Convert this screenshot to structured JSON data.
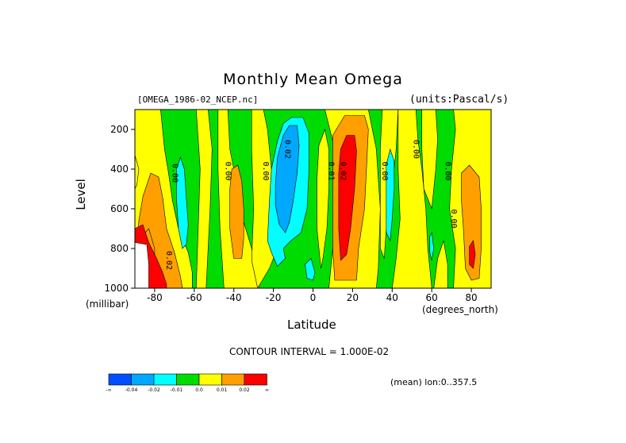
{
  "page": {
    "title": "Monthly Mean Omega",
    "file_label": "[OMEGA_1986-02_NCEP.nc]",
    "units_label": "(units:Pascal/s)",
    "contour_interval": "CONTOUR INTERVAL = 1.000E-02",
    "mean_note": "(mean) lon:0..357.5"
  },
  "chart_data": {
    "type": "heatmap",
    "title": "Monthly Mean Omega",
    "xlabel": "Latitude",
    "xunit": "(degrees_north)",
    "ylabel": "Level",
    "yunit": "(millibar)",
    "xlim": [
      -90,
      90
    ],
    "ylim": [
      1000,
      100
    ],
    "x_ticks": [
      -80,
      -60,
      -40,
      -20,
      0,
      20,
      40,
      60,
      80
    ],
    "x_tick_labels": [
      "-80",
      "-60",
      "-40",
      "-20",
      "0",
      "20",
      "40",
      "60",
      "80"
    ],
    "y_ticks": [
      200,
      400,
      600,
      800,
      1000
    ],
    "y_tick_labels": [
      "200",
      "400",
      "600",
      "800",
      "1000"
    ],
    "contour_labels": [
      {
        "lat": -71,
        "level": 420,
        "text": "0.00"
      },
      {
        "lat": -44,
        "level": 410,
        "text": "0.00"
      },
      {
        "lat": -25,
        "level": 410,
        "text": "0.00"
      },
      {
        "lat": -14,
        "level": 300,
        "text": "0.02"
      },
      {
        "lat": 8,
        "level": 410,
        "text": "0.01"
      },
      {
        "lat": 14,
        "level": 410,
        "text": "0.02"
      },
      {
        "lat": 35,
        "level": 410,
        "text": "0.00"
      },
      {
        "lat": 51,
        "level": 300,
        "text": "0.00"
      },
      {
        "lat": 67,
        "level": 410,
        "text": "0.00"
      },
      {
        "lat": 70,
        "level": 650,
        "text": "0.00"
      },
      {
        "lat": -74,
        "level": 860,
        "text": "0.02"
      }
    ],
    "legend": {
      "colors": [
        "#0050ff",
        "#00a8ff",
        "#00ffff",
        "#00dc00",
        "#ffff00",
        "#ffa000",
        "#ff0000"
      ],
      "labels": [
        "-∞",
        "-0.04",
        "-0.02",
        "-0.01",
        "0.0",
        "0.01",
        "0.02",
        "∞"
      ]
    },
    "background_color": "#00dc00",
    "regions": [
      {
        "level": "yellow",
        "color": "#ffff00",
        "points": [
          [
            -90,
            100
          ],
          [
            -77,
            100
          ],
          [
            -75,
            300
          ],
          [
            -73,
            420
          ],
          [
            -71,
            560
          ],
          [
            -68,
            700
          ],
          [
            -63,
            820
          ],
          [
            -61,
            920
          ],
          [
            -61,
            1000
          ],
          [
            -90,
            1000
          ]
        ]
      },
      {
        "level": "yellow",
        "color": "#ffff00",
        "points": [
          [
            -59,
            100
          ],
          [
            -53,
            100
          ],
          [
            -51,
            300
          ],
          [
            -52,
            600
          ],
          [
            -53,
            800
          ],
          [
            -54,
            1000
          ],
          [
            -59,
            1000
          ],
          [
            -58,
            700
          ],
          [
            -57,
            400
          ]
        ]
      },
      {
        "level": "yellow",
        "color": "#ffff00",
        "points": [
          [
            -48,
            100
          ],
          [
            -43,
            100
          ],
          [
            -42,
            300
          ],
          [
            -40,
            400
          ],
          [
            -37,
            600
          ],
          [
            -31,
            800
          ],
          [
            -27,
            1000
          ],
          [
            -45,
            1000
          ],
          [
            -47,
            700
          ],
          [
            -48,
            400
          ]
        ]
      },
      {
        "level": "yellow",
        "color": "#ffff00",
        "points": [
          [
            -31,
            100
          ],
          [
            -25,
            100
          ],
          [
            -23,
            200
          ],
          [
            -21,
            400
          ],
          [
            -19,
            600
          ],
          [
            -18,
            800
          ],
          [
            -22,
            900
          ],
          [
            -28,
            1000
          ],
          [
            -31,
            860
          ],
          [
            -30,
            600
          ],
          [
            -31,
            300
          ]
        ]
      },
      {
        "level": "yellow",
        "color": "#ffff00",
        "points": [
          [
            3,
            280
          ],
          [
            6,
            200
          ],
          [
            8,
            300
          ],
          [
            8,
            500
          ],
          [
            7,
            700
          ],
          [
            5,
            850
          ],
          [
            4,
            900
          ],
          [
            2,
            700
          ],
          [
            2,
            450
          ]
        ]
      },
      {
        "level": "yellow",
        "color": "#ffff00",
        "points": [
          [
            6,
            100
          ],
          [
            28,
            100
          ],
          [
            32,
            300
          ],
          [
            34,
            600
          ],
          [
            33,
            900
          ],
          [
            32,
            1000
          ],
          [
            8,
            1000
          ],
          [
            10,
            800
          ],
          [
            12,
            500
          ],
          [
            11,
            300
          ]
        ]
      },
      {
        "level": "yellow",
        "color": "#ffff00",
        "points": [
          [
            35,
            100
          ],
          [
            43,
            100
          ],
          [
            42,
            300
          ],
          [
            40,
            500
          ],
          [
            37,
            700
          ],
          [
            36,
            850
          ],
          [
            34,
            800
          ],
          [
            34,
            500
          ],
          [
            34,
            300
          ]
        ]
      },
      {
        "level": "yellow",
        "color": "#ffff00",
        "points": [
          [
            43,
            100
          ],
          [
            52,
            100
          ],
          [
            53,
            250
          ],
          [
            55,
            400
          ],
          [
            57,
            600
          ],
          [
            58,
            800
          ],
          [
            60,
            1000
          ],
          [
            40,
            1000
          ],
          [
            42,
            850
          ],
          [
            44,
            650
          ],
          [
            43,
            400
          ]
        ]
      },
      {
        "level": "yellow",
        "color": "#ffff00",
        "points": [
          [
            55,
            100
          ],
          [
            62,
            100
          ],
          [
            63,
            250
          ],
          [
            62,
            400
          ],
          [
            60,
            600
          ],
          [
            56,
            500
          ],
          [
            55,
            300
          ]
        ]
      },
      {
        "level": "yellow",
        "color": "#ffff00",
        "points": [
          [
            71,
            100
          ],
          [
            90,
            100
          ],
          [
            90,
            1000
          ],
          [
            71,
            1000
          ],
          [
            72,
            800
          ],
          [
            69,
            600
          ],
          [
            70,
            400
          ],
          [
            72,
            200
          ]
        ]
      },
      {
        "level": "yellow",
        "color": "#ffff00",
        "points": [
          [
            63,
            850
          ],
          [
            66,
            760
          ],
          [
            68,
            880
          ],
          [
            68,
            1000
          ],
          [
            61,
            1000
          ]
        ]
      },
      {
        "level": "yellow",
        "color": "#ffff00",
        "points": [
          [
            -90,
            330
          ],
          [
            -88,
            400
          ],
          [
            -89,
            480
          ],
          [
            -90,
            500
          ]
        ]
      },
      {
        "level": "orange",
        "color": "#ffa000",
        "points": [
          [
            -86,
            540
          ],
          [
            -82,
            420
          ],
          [
            -78,
            440
          ],
          [
            -76,
            540
          ],
          [
            -74,
            700
          ],
          [
            -70,
            820
          ],
          [
            -67,
            940
          ],
          [
            -66,
            1000
          ],
          [
            -88,
            1000
          ],
          [
            -89,
            820
          ],
          [
            -88,
            660
          ]
        ]
      },
      {
        "level": "orange",
        "color": "#ffa000",
        "points": [
          [
            -41,
            400
          ],
          [
            -38,
            380
          ],
          [
            -36,
            460
          ],
          [
            -35,
            600
          ],
          [
            -35,
            750
          ],
          [
            -36,
            850
          ],
          [
            -40,
            850
          ],
          [
            -42,
            700
          ],
          [
            -42,
            500
          ]
        ]
      },
      {
        "level": "orange",
        "color": "#ffa000",
        "points": [
          [
            10,
            230
          ],
          [
            16,
            130
          ],
          [
            26,
            130
          ],
          [
            28,
            200
          ],
          [
            27,
            400
          ],
          [
            26,
            600
          ],
          [
            23,
            800
          ],
          [
            22,
            960
          ],
          [
            11,
            960
          ],
          [
            10,
            800
          ],
          [
            10,
            500
          ]
        ]
      },
      {
        "level": "orange",
        "color": "#ffa000",
        "points": [
          [
            75,
            420
          ],
          [
            79,
            380
          ],
          [
            84,
            440
          ],
          [
            85,
            600
          ],
          [
            85,
            800
          ],
          [
            84,
            950
          ],
          [
            80,
            960
          ],
          [
            77,
            900
          ],
          [
            76,
            700
          ],
          [
            75,
            560
          ]
        ]
      },
      {
        "level": "orange",
        "color": "#ffa000",
        "points": [
          [
            -88,
            760
          ],
          [
            -83,
            700
          ],
          [
            -80,
            800
          ],
          [
            -80,
            900
          ],
          [
            -82,
            1000
          ],
          [
            -90,
            1000
          ],
          [
            -90,
            820
          ]
        ]
      },
      {
        "level": "red",
        "color": "#ff0000",
        "points": [
          [
            13,
            420
          ],
          [
            14,
            300
          ],
          [
            17,
            230
          ],
          [
            21,
            230
          ],
          [
            22,
            310
          ],
          [
            21,
            500
          ],
          [
            19,
            700
          ],
          [
            17,
            830
          ],
          [
            14,
            860
          ],
          [
            13,
            700
          ]
        ]
      },
      {
        "level": "red",
        "color": "#ff0000",
        "points": [
          [
            -90,
            700
          ],
          [
            -86,
            680
          ],
          [
            -83,
            770
          ],
          [
            -79,
            850
          ],
          [
            -76,
            920
          ],
          [
            -74,
            980
          ],
          [
            -74,
            1000
          ],
          [
            -90,
            1000
          ]
        ]
      },
      {
        "level": "red",
        "color": "#ff0000",
        "points": [
          [
            79,
            790
          ],
          [
            81,
            760
          ],
          [
            82,
            830
          ],
          [
            81,
            900
          ],
          [
            79,
            880
          ]
        ]
      },
      {
        "level": "cyan",
        "color": "#00ffff",
        "points": [
          [
            -22,
            560
          ],
          [
            -21,
            400
          ],
          [
            -18,
            260
          ],
          [
            -15,
            170
          ],
          [
            -11,
            140
          ],
          [
            -5,
            140
          ],
          [
            -2,
            220
          ],
          [
            -2,
            400
          ],
          [
            -3,
            600
          ],
          [
            -6,
            720
          ],
          [
            -11,
            760
          ],
          [
            -15,
            800
          ],
          [
            -14,
            850
          ],
          [
            -18,
            890
          ],
          [
            -21,
            820
          ],
          [
            -23,
            760
          ]
        ]
      },
      {
        "level": "cyan",
        "color": "#00ffff",
        "points": [
          [
            -69,
            400
          ],
          [
            -67,
            340
          ],
          [
            -65,
            400
          ],
          [
            -64,
            550
          ],
          [
            -63,
            680
          ],
          [
            -64,
            780
          ],
          [
            -66,
            800
          ],
          [
            -68,
            700
          ],
          [
            -69,
            550
          ]
        ]
      },
      {
        "level": "cyan",
        "color": "#00ffff",
        "points": [
          [
            37,
            380
          ],
          [
            39,
            300
          ],
          [
            41,
            360
          ],
          [
            41,
            500
          ],
          [
            40,
            650
          ],
          [
            39,
            760
          ],
          [
            37,
            720
          ],
          [
            37,
            550
          ]
        ]
      },
      {
        "level": "cyan",
        "color": "#00ffff",
        "points": [
          [
            -4,
            880
          ],
          [
            -1,
            850
          ],
          [
            1,
            920
          ],
          [
            0,
            960
          ],
          [
            -3,
            950
          ]
        ]
      },
      {
        "level": "cyan",
        "color": "#00ffff",
        "points": [
          [
            59,
            740
          ],
          [
            60,
            720
          ],
          [
            61,
            800
          ],
          [
            60,
            860
          ],
          [
            59,
            820
          ]
        ]
      },
      {
        "level": "blue",
        "color": "#00a8ff",
        "points": [
          [
            -19,
            480
          ],
          [
            -18,
            340
          ],
          [
            -15,
            230
          ],
          [
            -12,
            180
          ],
          [
            -8,
            180
          ],
          [
            -7,
            280
          ],
          [
            -8,
            420
          ],
          [
            -10,
            560
          ],
          [
            -12,
            670
          ],
          [
            -14,
            720
          ],
          [
            -17,
            680
          ],
          [
            -19,
            580
          ]
        ]
      },
      {
        "level": "white",
        "color": "#ffffff",
        "points": [
          [
            -90,
            770
          ],
          [
            -84,
            780
          ],
          [
            -83,
            880
          ],
          [
            -83,
            1000
          ],
          [
            -90,
            1000
          ]
        ]
      }
    ]
  }
}
